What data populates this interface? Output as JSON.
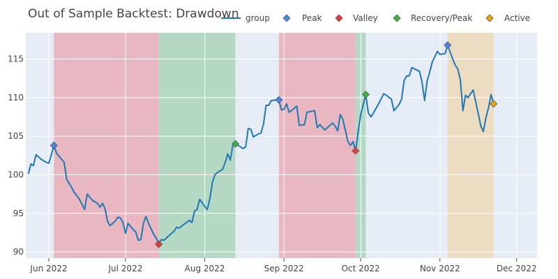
{
  "chart_data": {
    "type": "line",
    "title": "Out of Sample Backtest: Drawdown",
    "xlabel": "",
    "ylabel": "",
    "x_range": [
      "2022-05-23",
      "2022-12-09"
    ],
    "ylim": [
      89.2,
      118.4
    ],
    "grid": true,
    "legend_position": "top",
    "x_ticks": [
      {
        "date": "2022-06-01",
        "label": "Jun 2022"
      },
      {
        "date": "2022-07-01",
        "label": "Jul 2022"
      },
      {
        "date": "2022-08-01",
        "label": "Aug 2022"
      },
      {
        "date": "2022-09-01",
        "label": "Sep 2022"
      },
      {
        "date": "2022-10-01",
        "label": "Oct 2022"
      },
      {
        "date": "2022-11-01",
        "label": "Nov 2022"
      },
      {
        "date": "2022-12-01",
        "label": "Dec 2022"
      }
    ],
    "y_ticks": [
      90,
      95,
      100,
      105,
      110,
      115
    ],
    "shaded_regions": [
      {
        "start": "2022-06-03",
        "end": "2022-07-14",
        "kind": "drawdown",
        "color": "#e8b7c2"
      },
      {
        "start": "2022-07-14",
        "end": "2022-08-13",
        "kind": "recovery",
        "color": "#b5d8c5"
      },
      {
        "start": "2022-08-30",
        "end": "2022-09-29",
        "kind": "drawdown",
        "color": "#e8b7c2"
      },
      {
        "start": "2022-09-29",
        "end": "2022-10-03",
        "kind": "recovery",
        "color": "#b5d8c5"
      },
      {
        "start": "2022-11-04",
        "end": "2022-11-22",
        "kind": "active",
        "color": "#ebdcc2"
      }
    ],
    "series": [
      {
        "name": "group",
        "color": "#1f77b4",
        "points": [
          [
            "2022-05-24",
            100.1
          ],
          [
            "2022-05-25",
            101.4
          ],
          [
            "2022-05-26",
            101.2
          ],
          [
            "2022-05-27",
            102.6
          ],
          [
            "2022-05-29",
            102.0
          ],
          [
            "2022-05-31",
            101.6
          ],
          [
            "2022-06-01",
            101.5
          ],
          [
            "2022-06-02",
            102.6
          ],
          [
            "2022-06-03",
            103.8
          ],
          [
            "2022-06-04",
            102.8
          ],
          [
            "2022-06-06",
            102.0
          ],
          [
            "2022-06-07",
            101.6
          ],
          [
            "2022-06-08",
            99.4
          ],
          [
            "2022-06-10",
            98.3
          ],
          [
            "2022-06-11",
            97.7
          ],
          [
            "2022-06-13",
            96.8
          ],
          [
            "2022-06-15",
            95.5
          ],
          [
            "2022-06-16",
            97.5
          ],
          [
            "2022-06-18",
            96.7
          ],
          [
            "2022-06-20",
            96.3
          ],
          [
            "2022-06-21",
            95.8
          ],
          [
            "2022-06-22",
            96.3
          ],
          [
            "2022-06-23",
            95.6
          ],
          [
            "2022-06-24",
            93.9
          ],
          [
            "2022-06-25",
            93.4
          ],
          [
            "2022-06-27",
            94.0
          ],
          [
            "2022-06-28",
            94.5
          ],
          [
            "2022-06-29",
            94.4
          ],
          [
            "2022-06-30",
            93.8
          ],
          [
            "2022-07-01",
            92.4
          ],
          [
            "2022-07-02",
            93.7
          ],
          [
            "2022-07-04",
            92.9
          ],
          [
            "2022-07-05",
            92.6
          ],
          [
            "2022-07-06",
            91.5
          ],
          [
            "2022-07-07",
            91.6
          ],
          [
            "2022-07-08",
            93.7
          ],
          [
            "2022-07-09",
            94.6
          ],
          [
            "2022-07-10",
            93.7
          ],
          [
            "2022-07-12",
            92.3
          ],
          [
            "2022-07-13",
            91.8
          ],
          [
            "2022-07-14",
            91.0
          ],
          [
            "2022-07-15",
            91.6
          ],
          [
            "2022-07-16",
            91.5
          ],
          [
            "2022-07-18",
            92.1
          ],
          [
            "2022-07-20",
            92.7
          ],
          [
            "2022-07-21",
            93.2
          ],
          [
            "2022-07-22",
            93.1
          ],
          [
            "2022-07-24",
            93.6
          ],
          [
            "2022-07-26",
            94.1
          ],
          [
            "2022-07-27",
            93.8
          ],
          [
            "2022-07-28",
            95.3
          ],
          [
            "2022-07-29",
            95.5
          ],
          [
            "2022-07-30",
            96.8
          ],
          [
            "2022-08-01",
            95.9
          ],
          [
            "2022-08-02",
            95.5
          ],
          [
            "2022-08-03",
            96.9
          ],
          [
            "2022-08-04",
            99.0
          ],
          [
            "2022-08-05",
            100.0
          ],
          [
            "2022-08-06",
            100.3
          ],
          [
            "2022-08-08",
            100.7
          ],
          [
            "2022-08-09",
            101.6
          ],
          [
            "2022-08-10",
            102.7
          ],
          [
            "2022-08-11",
            101.9
          ],
          [
            "2022-08-12",
            103.9
          ],
          [
            "2022-08-13",
            104.0
          ],
          [
            "2022-08-15",
            103.6
          ],
          [
            "2022-08-16",
            103.4
          ],
          [
            "2022-08-17",
            103.6
          ],
          [
            "2022-08-18",
            106.0
          ],
          [
            "2022-08-19",
            105.9
          ],
          [
            "2022-08-20",
            104.9
          ],
          [
            "2022-08-22",
            105.3
          ],
          [
            "2022-08-23",
            105.4
          ],
          [
            "2022-08-24",
            106.6
          ],
          [
            "2022-08-25",
            109.0
          ],
          [
            "2022-08-26",
            109.0
          ],
          [
            "2022-08-27",
            109.6
          ],
          [
            "2022-08-29",
            109.7
          ],
          [
            "2022-08-30",
            109.7
          ],
          [
            "2022-08-31",
            108.4
          ],
          [
            "2022-09-01",
            108.5
          ],
          [
            "2022-09-02",
            109.2
          ],
          [
            "2022-09-03",
            108.1
          ],
          [
            "2022-09-05",
            108.6
          ],
          [
            "2022-09-06",
            108.9
          ],
          [
            "2022-09-07",
            106.4
          ],
          [
            "2022-09-09",
            106.5
          ],
          [
            "2022-09-10",
            108.1
          ],
          [
            "2022-09-13",
            108.3
          ],
          [
            "2022-09-14",
            106.1
          ],
          [
            "2022-09-15",
            106.5
          ],
          [
            "2022-09-17",
            105.8
          ],
          [
            "2022-09-19",
            106.4
          ],
          [
            "2022-09-20",
            106.7
          ],
          [
            "2022-09-21",
            106.3
          ],
          [
            "2022-09-22",
            105.7
          ],
          [
            "2022-09-23",
            107.8
          ],
          [
            "2022-09-24",
            107.2
          ],
          [
            "2022-09-26",
            104.3
          ],
          [
            "2022-09-27",
            103.8
          ],
          [
            "2022-09-28",
            104.3
          ],
          [
            "2022-09-29",
            103.1
          ],
          [
            "2022-09-30",
            105.6
          ],
          [
            "2022-10-01",
            107.8
          ],
          [
            "2022-10-03",
            110.4
          ],
          [
            "2022-10-04",
            108.0
          ],
          [
            "2022-10-05",
            107.5
          ],
          [
            "2022-10-06",
            108.0
          ],
          [
            "2022-10-08",
            109.2
          ],
          [
            "2022-10-10",
            110.5
          ],
          [
            "2022-10-11",
            110.3
          ],
          [
            "2022-10-13",
            109.8
          ],
          [
            "2022-10-14",
            108.3
          ],
          [
            "2022-10-16",
            109.1
          ],
          [
            "2022-10-17",
            109.8
          ],
          [
            "2022-10-18",
            112.2
          ],
          [
            "2022-10-19",
            112.8
          ],
          [
            "2022-10-20",
            112.8
          ],
          [
            "2022-10-21",
            113.9
          ],
          [
            "2022-10-24",
            113.4
          ],
          [
            "2022-10-25",
            112.0
          ],
          [
            "2022-10-26",
            109.6
          ],
          [
            "2022-10-27",
            112.2
          ],
          [
            "2022-10-28",
            113.3
          ],
          [
            "2022-10-29",
            114.6
          ],
          [
            "2022-10-31",
            116.0
          ],
          [
            "2022-11-01",
            115.6
          ],
          [
            "2022-11-03",
            115.7
          ],
          [
            "2022-11-04",
            116.8
          ],
          [
            "2022-11-05",
            115.9
          ],
          [
            "2022-11-06",
            115.0
          ],
          [
            "2022-11-07",
            114.2
          ],
          [
            "2022-11-08",
            113.7
          ],
          [
            "2022-11-09",
            112.3
          ],
          [
            "2022-11-10",
            108.3
          ],
          [
            "2022-11-11",
            110.3
          ],
          [
            "2022-11-12",
            110.0
          ],
          [
            "2022-11-14",
            111.0
          ],
          [
            "2022-11-16",
            107.9
          ],
          [
            "2022-11-17",
            106.3
          ],
          [
            "2022-11-18",
            105.6
          ],
          [
            "2022-11-19",
            107.4
          ],
          [
            "2022-11-20",
            108.7
          ],
          [
            "2022-11-21",
            110.4
          ],
          [
            "2022-11-22",
            109.2
          ]
        ]
      }
    ],
    "markers": [
      {
        "name": "Peak",
        "color": "#4a86e8",
        "points": [
          [
            "2022-06-03",
            103.8
          ],
          [
            "2022-08-30",
            109.7
          ],
          [
            "2022-11-04",
            116.8
          ]
        ]
      },
      {
        "name": "Valley",
        "color": "#e03c3c",
        "points": [
          [
            "2022-07-14",
            91.0
          ],
          [
            "2022-09-29",
            103.1
          ]
        ]
      },
      {
        "name": "Recovery/Peak",
        "color": "#3cb43c",
        "points": [
          [
            "2022-08-13",
            104.0
          ],
          [
            "2022-10-03",
            110.4
          ]
        ]
      },
      {
        "name": "Active",
        "color": "#f0a500",
        "points": [
          [
            "2022-11-22",
            109.2
          ]
        ]
      }
    ]
  }
}
